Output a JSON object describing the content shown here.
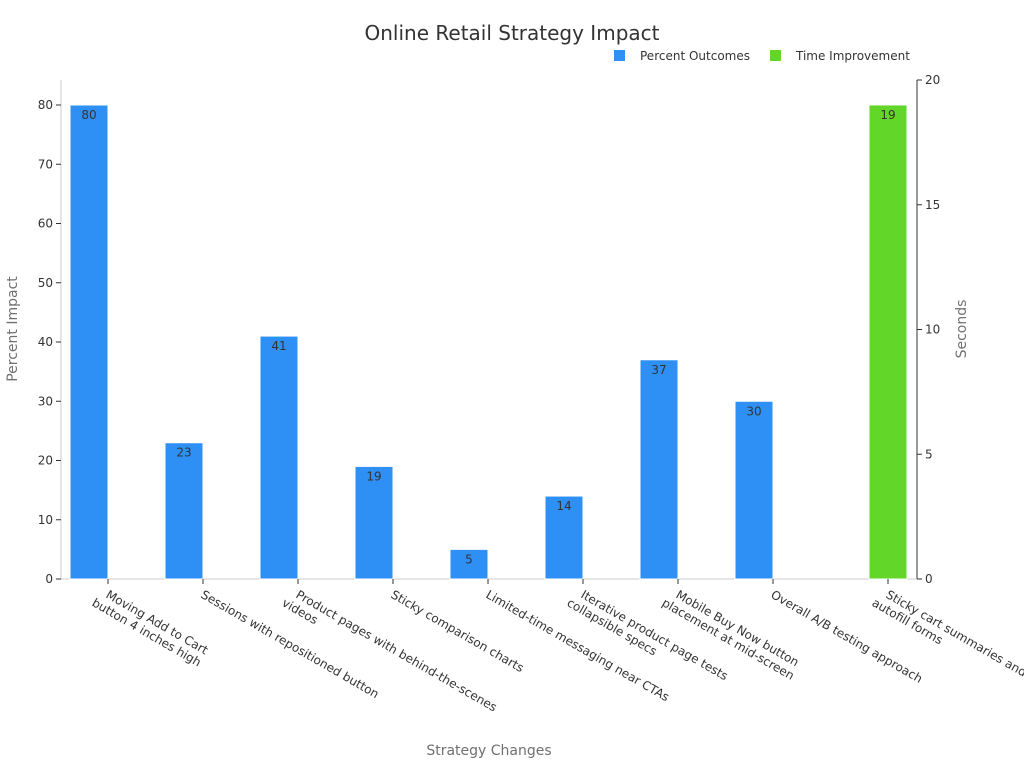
{
  "chart_data": {
    "type": "bar",
    "title": "Online Retail Strategy Impact",
    "xlabel": "Strategy Changes",
    "ylabel": "Percent Impact",
    "y2label": "Seconds",
    "ylim": [
      0,
      84
    ],
    "y2lim": [
      0,
      20
    ],
    "yticks": [
      "0",
      "10",
      "20",
      "30",
      "40",
      "50",
      "60",
      "70",
      "80"
    ],
    "y2ticks": [
      "0",
      "5",
      "10",
      "15",
      "20"
    ],
    "legend_position": "top-right",
    "categories": [
      [
        "Moving Add to Cart",
        "button 4 inches high"
      ],
      [
        "Sessions with repositioned button"
      ],
      [
        "Product pages with behind-the-scenes",
        "videos"
      ],
      [
        "Sticky comparison charts"
      ],
      [
        "Limited-time messaging near CTAs"
      ],
      [
        "Iterative product page tests",
        "collapsible specs"
      ],
      [
        "Mobile Buy Now button",
        "placement at mid-screen"
      ],
      [
        "Overall A/B testing approach"
      ],
      [
        "Sticky cart summaries and",
        "autofill forms"
      ]
    ],
    "series": [
      {
        "name": "Percent Outcomes",
        "color": "#2e90f5",
        "axis": "left",
        "values": [
          80,
          23,
          41,
          19,
          5,
          14,
          37,
          30,
          null
        ],
        "labels": [
          "80",
          "23",
          "41",
          "19",
          "5",
          "14",
          "37",
          "30",
          ""
        ]
      },
      {
        "name": "Time Improvement",
        "color": "#63d62a",
        "axis": "right",
        "values": [
          null,
          null,
          null,
          null,
          null,
          null,
          null,
          null,
          19
        ],
        "labels": [
          "",
          "",
          "",
          "",
          "",
          "",
          "",
          "",
          "19"
        ]
      }
    ]
  }
}
